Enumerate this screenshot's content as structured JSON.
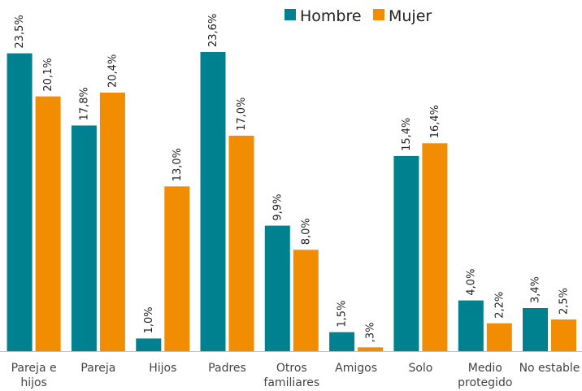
{
  "chart_data": {
    "type": "bar",
    "categories": [
      [
        "Pareja e",
        "hijos"
      ],
      [
        "Pareja"
      ],
      [
        "Hijos"
      ],
      [
        "Padres"
      ],
      [
        "Otros",
        "familiares"
      ],
      [
        "Amigos"
      ],
      [
        "Solo"
      ],
      [
        "Medio",
        "protegido"
      ],
      [
        "No estable"
      ]
    ],
    "series": [
      {
        "name": "Hombre",
        "color": "#00818f",
        "values": [
          23.5,
          17.8,
          1.0,
          23.6,
          9.9,
          1.5,
          15.4,
          4.0,
          3.4
        ],
        "labels": [
          "23,5%",
          "17,8%",
          "1,0%",
          "23,6%",
          "9,9%",
          "1,5%",
          "15,4%",
          "4,0%",
          "3,4%"
        ]
      },
      {
        "name": "Mujer",
        "color": "#f28c00",
        "values": [
          20.1,
          20.4,
          13.0,
          17.0,
          8.0,
          0.3,
          16.4,
          2.2,
          2.5
        ],
        "labels": [
          "20,1%",
          "20,4%",
          "13,0%",
          "17,0%",
          "8,0%",
          ",3%",
          "16,4%",
          "2,2%",
          "2,5%"
        ]
      }
    ],
    "ylim": [
      0,
      23.6
    ],
    "legend_position": "top-right",
    "grid": false
  },
  "colors": {
    "axis": "#bfbfbf"
  }
}
